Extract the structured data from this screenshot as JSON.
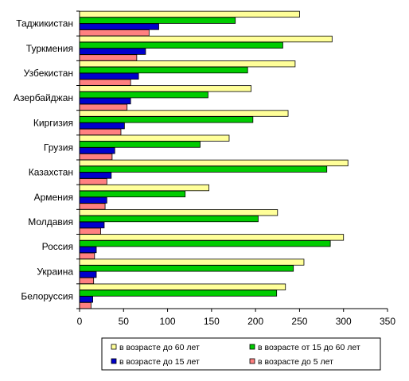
{
  "chart_data": {
    "type": "bar",
    "orientation": "horizontal",
    "categories": [
      "Таджикистан",
      "Туркмения",
      "Узбекистан",
      "Азербайджан",
      "Киргизия",
      "Грузия",
      "Казахстан",
      "Армения",
      "Молдавия",
      "Россия",
      "Украина",
      "Белоруссия"
    ],
    "series": [
      {
        "name": "в возрасте до 60 лет",
        "color": "#FFFF99",
        "values": [
          250,
          287,
          245,
          195,
          237,
          170,
          305,
          147,
          225,
          300,
          255,
          234
        ]
      },
      {
        "name": "в возрасте от 15 до 60 лет",
        "color": "#00CC00",
        "values": [
          177,
          231,
          191,
          146,
          197,
          137,
          281,
          120,
          203,
          285,
          243,
          224
        ]
      },
      {
        "name": "в возрасте до 15 лет",
        "color": "#0000CC",
        "values": [
          90,
          75,
          67,
          58,
          51,
          40,
          36,
          31,
          28,
          19,
          19,
          15
        ]
      },
      {
        "name": "в возрасте до 5 лет",
        "color": "#FF8080",
        "values": [
          79,
          65,
          58,
          54,
          47,
          37,
          31,
          29,
          24,
          17,
          16,
          13
        ]
      }
    ],
    "x_ticks": [
      0,
      50,
      100,
      150,
      200,
      250,
      300,
      350
    ],
    "xlim": [
      0,
      350
    ],
    "grid": false,
    "legend_position": "bottom"
  }
}
